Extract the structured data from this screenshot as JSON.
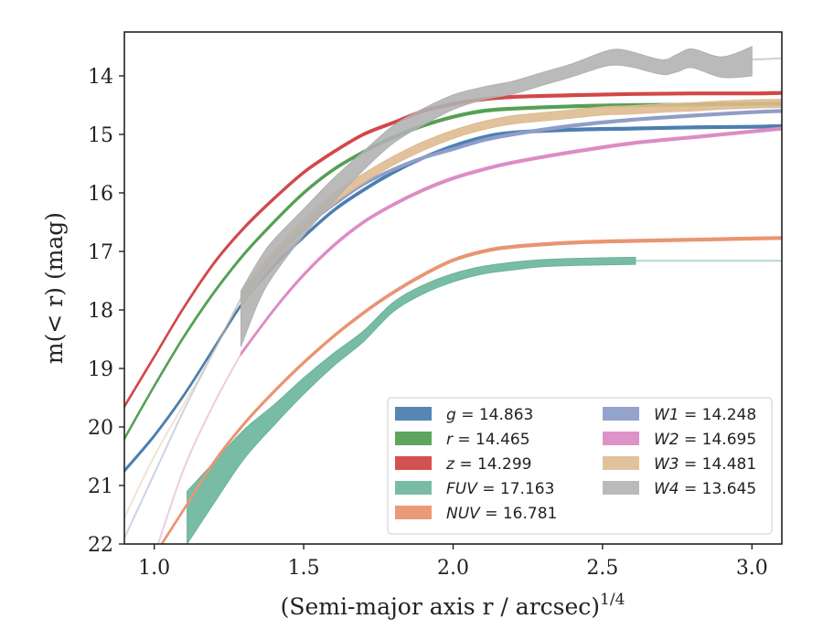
{
  "chart_data": {
    "type": "line",
    "title": "",
    "xlabel": "(Semi-major axis r / arcsec)",
    "xlabel_exp": "1/4",
    "ylabel": "m(< r) (mag)",
    "xlim": [
      0.9,
      3.1
    ],
    "ylim": [
      22,
      13.25
    ],
    "y_inverted": true,
    "grid": false,
    "legend_position": "lower-right",
    "x_ticks": [
      "1.0",
      "1.5",
      "2.0",
      "2.5",
      "3.0"
    ],
    "y_ticks": [
      "14",
      "15",
      "16",
      "17",
      "18",
      "19",
      "20",
      "21",
      "22"
    ],
    "series": [
      {
        "name": "g = 14.863",
        "color": "#4c7fb0",
        "band": false,
        "width": 0.05,
        "x": [
          0.9,
          1.0,
          1.1,
          1.2,
          1.3,
          1.4,
          1.5,
          1.6,
          1.7,
          1.8,
          1.9,
          2.0,
          2.1,
          2.2,
          2.4,
          2.6,
          2.8,
          3.0,
          3.1
        ],
        "y": [
          20.75,
          20.15,
          19.45,
          18.65,
          17.85,
          17.25,
          16.75,
          16.3,
          15.95,
          15.65,
          15.4,
          15.2,
          15.05,
          14.97,
          14.92,
          14.9,
          14.88,
          14.87,
          14.86
        ]
      },
      {
        "name": "r = 14.465",
        "color": "#55a055",
        "band": false,
        "width": 0.05,
        "x": [
          0.9,
          1.0,
          1.1,
          1.2,
          1.3,
          1.4,
          1.5,
          1.6,
          1.7,
          1.8,
          1.9,
          2.0,
          2.1,
          2.2,
          2.4,
          2.6,
          2.8,
          3.0,
          3.1
        ],
        "y": [
          20.2,
          19.3,
          18.45,
          17.7,
          17.05,
          16.5,
          16.0,
          15.6,
          15.3,
          15.05,
          14.85,
          14.7,
          14.6,
          14.56,
          14.52,
          14.5,
          14.49,
          14.48,
          14.47
        ]
      },
      {
        "name": "z = 14.299",
        "color": "#d24848",
        "band": false,
        "width": 0.05,
        "x": [
          0.9,
          1.0,
          1.1,
          1.2,
          1.3,
          1.4,
          1.5,
          1.6,
          1.7,
          1.8,
          1.9,
          2.0,
          2.1,
          2.2,
          2.4,
          2.6,
          2.8,
          3.0,
          3.1
        ],
        "y": [
          19.65,
          18.8,
          17.95,
          17.2,
          16.6,
          16.1,
          15.65,
          15.3,
          15.0,
          14.8,
          14.6,
          14.48,
          14.4,
          14.36,
          14.33,
          14.31,
          14.3,
          14.3,
          14.29
        ]
      },
      {
        "name": "FUV = 17.163",
        "color": "#66b39a",
        "band": true,
        "x": [
          1.11,
          1.2,
          1.3,
          1.4,
          1.5,
          1.6,
          1.7,
          1.8,
          1.9,
          2.0,
          2.1,
          2.2,
          2.3,
          2.4,
          2.5,
          2.61
        ],
        "y": [
          21.55,
          20.95,
          20.3,
          19.8,
          19.3,
          18.85,
          18.45,
          17.95,
          17.65,
          17.45,
          17.32,
          17.25,
          17.2,
          17.18,
          17.17,
          17.16
        ],
        "width": [
          0.9,
          0.7,
          0.5,
          0.35,
          0.28,
          0.22,
          0.18,
          0.16,
          0.15,
          0.14,
          0.13,
          0.13,
          0.12,
          0.12,
          0.12,
          0.12
        ],
        "ext_x": [
          2.61,
          3.1
        ],
        "ext_y": [
          17.16,
          17.16
        ],
        "ext_opacity": 0.5
      },
      {
        "name": "NUV = 16.781",
        "color": "#e99572",
        "band": false,
        "width": 0.05,
        "x": [
          1.0,
          1.1,
          1.2,
          1.3,
          1.4,
          1.5,
          1.6,
          1.7,
          1.8,
          1.9,
          2.0,
          2.1,
          2.2,
          2.4,
          2.6,
          2.8,
          3.0,
          3.1
        ],
        "y": [
          22.2,
          21.4,
          20.6,
          19.95,
          19.4,
          18.9,
          18.45,
          18.05,
          17.7,
          17.4,
          17.15,
          17.0,
          16.92,
          16.85,
          16.82,
          16.8,
          16.78,
          16.77
        ]
      },
      {
        "name": "W1 = 14.248",
        "color": "#8e9ec8",
        "band": false,
        "width": 0.05,
        "x": [
          1.29,
          1.4,
          1.5,
          1.6,
          1.7,
          1.8,
          1.9,
          2.0,
          2.1,
          2.2,
          2.4,
          2.6,
          2.8,
          3.0,
          3.1
        ],
        "y": [
          17.8,
          17.1,
          16.6,
          16.2,
          15.85,
          15.6,
          15.4,
          15.25,
          15.1,
          15.0,
          14.85,
          14.75,
          14.68,
          14.62,
          14.6
        ],
        "pre_x": [
          0.9,
          1.0,
          1.1,
          1.2,
          1.29
        ],
        "pre_y": [
          21.9,
          20.8,
          19.7,
          18.7,
          17.8
        ],
        "pre_opacity": 0.45
      },
      {
        "name": "W2 = 14.695",
        "color": "#dc8cc4",
        "band": false,
        "width": 0.05,
        "x": [
          1.29,
          1.4,
          1.5,
          1.6,
          1.7,
          1.8,
          1.9,
          2.0,
          2.1,
          2.2,
          2.4,
          2.6,
          2.8,
          3.0,
          3.1
        ],
        "y": [
          18.75,
          18.0,
          17.4,
          16.9,
          16.5,
          16.2,
          15.95,
          15.75,
          15.6,
          15.48,
          15.3,
          15.15,
          15.05,
          14.95,
          14.9
        ],
        "pre_x": [
          1.0,
          1.1,
          1.2,
          1.29
        ],
        "pre_y": [
          22.2,
          20.7,
          19.6,
          18.75
        ],
        "pre_opacity": 0.45
      },
      {
        "name": "W3 = 14.481",
        "color": "#deba8e",
        "band": true,
        "x": [
          1.29,
          1.4,
          1.5,
          1.6,
          1.7,
          1.8,
          1.9,
          2.0,
          2.1,
          2.2,
          2.3,
          2.4,
          2.5,
          2.6,
          2.7,
          2.8,
          2.9,
          3.0,
          3.1
        ],
        "y": [
          17.8,
          17.1,
          16.55,
          16.1,
          15.75,
          15.45,
          15.2,
          15.0,
          14.85,
          14.75,
          14.7,
          14.65,
          14.6,
          14.58,
          14.55,
          14.53,
          14.5,
          14.48,
          14.47
        ],
        "width": [
          0.25,
          0.22,
          0.2,
          0.18,
          0.16,
          0.15,
          0.15,
          0.14,
          0.14,
          0.14,
          0.14,
          0.14,
          0.14,
          0.14,
          0.14,
          0.14,
          0.14,
          0.14,
          0.14
        ],
        "pre_x": [
          0.9,
          1.0,
          1.1,
          1.2,
          1.29
        ],
        "pre_y": [
          21.55,
          20.5,
          19.6,
          18.7,
          17.8
        ],
        "pre_opacity": 0.4
      },
      {
        "name": "W4 = 13.645",
        "color": "#b0b0b0",
        "band": true,
        "x": [
          1.29,
          1.35,
          1.4,
          1.5,
          1.6,
          1.7,
          1.8,
          1.9,
          2.0,
          2.1,
          2.2,
          2.3,
          2.4,
          2.5,
          2.55,
          2.6,
          2.7,
          2.75,
          2.8,
          2.9,
          3.0
        ],
        "y": [
          18.15,
          17.5,
          17.1,
          16.5,
          15.95,
          15.45,
          15.0,
          14.7,
          14.45,
          14.3,
          14.2,
          14.05,
          13.9,
          13.72,
          13.68,
          13.72,
          13.85,
          13.78,
          13.7,
          13.85,
          13.75
        ],
        "width": [
          0.95,
          0.7,
          0.6,
          0.45,
          0.4,
          0.32,
          0.3,
          0.28,
          0.25,
          0.22,
          0.22,
          0.22,
          0.22,
          0.25,
          0.27,
          0.26,
          0.25,
          0.3,
          0.32,
          0.35,
          0.5
        ],
        "ext_x": [
          3.0,
          3.1
        ],
        "ext_y": [
          13.72,
          13.7
        ],
        "ext_opacity": 0.6
      }
    ]
  }
}
